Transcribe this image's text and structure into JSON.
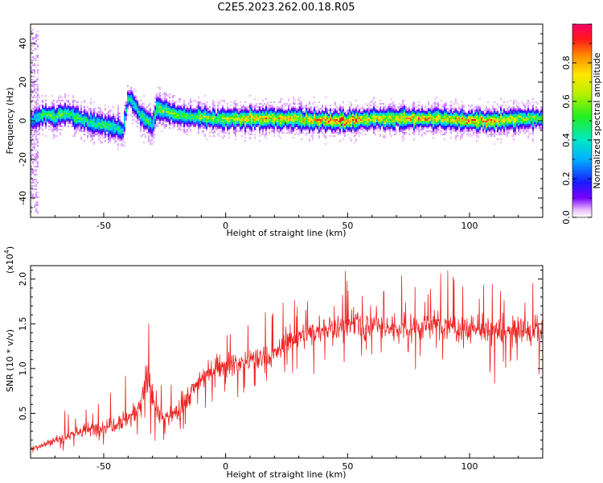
{
  "title": "C2E5.2023.262.00.18.R05",
  "colors": {
    "snr_line": "#ee2222",
    "spectrogram_background": "#ffffff",
    "axis": "#000000"
  },
  "chart_data": [
    {
      "type": "heatmap",
      "xlabel": "Height of straight line (km)",
      "ylabel": "Frequency (Hz)",
      "xlim": [
        -80,
        130
      ],
      "ylim": [
        -50,
        50
      ],
      "xticks": [
        "-50",
        "0",
        "50",
        "100"
      ],
      "xtick_values": [
        -50,
        0,
        50,
        100
      ],
      "yticks": [
        "-40",
        "-20",
        "0",
        "20",
        "40"
      ],
      "ytick_values": [
        -40,
        -20,
        0,
        20,
        40
      ],
      "colormap": "rainbow",
      "colorbar": {
        "label": "Normalized spectral amplitude",
        "range": [
          0,
          1
        ],
        "ticks": [
          "0.0",
          "0.2",
          "0.4",
          "0.6",
          "0.8"
        ],
        "tick_values": [
          0.0,
          0.2,
          0.4,
          0.6,
          0.8
        ]
      },
      "ridge": {
        "x": [
          -80,
          -75,
          -70,
          -65,
          -60,
          -55,
          -50,
          -45,
          -42,
          -40,
          -38,
          -35,
          -32,
          -30,
          -28,
          -25,
          -20,
          -15,
          -10,
          -5,
          0,
          10,
          20,
          30,
          40,
          50,
          60,
          70,
          80,
          90,
          100,
          110,
          120,
          130
        ],
        "frequency": [
          0,
          3,
          2,
          4,
          1,
          -1,
          -2,
          -4,
          -5,
          12,
          10,
          3,
          0,
          -2,
          7,
          5,
          3,
          2,
          2,
          1,
          1,
          1,
          1,
          1,
          0,
          0,
          1,
          1,
          1,
          1,
          0,
          0,
          1,
          1
        ],
        "amplitude": [
          0.3,
          0.5,
          0.55,
          0.5,
          0.5,
          0.45,
          0.5,
          0.45,
          0.4,
          0.45,
          0.4,
          0.45,
          0.5,
          0.4,
          0.6,
          0.55,
          0.55,
          0.5,
          0.6,
          0.6,
          0.65,
          0.8,
          0.75,
          0.7,
          0.85,
          0.9,
          0.7,
          0.75,
          0.8,
          0.7,
          0.85,
          0.8,
          0.65,
          0.55
        ],
        "width_hz": 3
      }
    },
    {
      "type": "line",
      "xlabel": "Height of straight line (km)",
      "ylabel": "SNR (10 * v/v)",
      "y_multiplier_label": "(x10",
      "y_multiplier_exponent": "4",
      "y_multiplier_close": ")",
      "xlim": [
        -80,
        130
      ],
      "ylim": [
        0,
        21500
      ],
      "xticks": [
        "-50",
        "0",
        "50",
        "100"
      ],
      "xtick_values": [
        -50,
        0,
        50,
        100
      ],
      "yticks": [
        "0.5",
        "1.0",
        "1.5",
        "2.0"
      ],
      "ytick_values": [
        5000,
        10000,
        15000,
        20000
      ],
      "series": [
        {
          "x": [
            -80,
            -75,
            -70,
            -65,
            -60,
            -55,
            -50,
            -45,
            -40,
            -35,
            -33,
            -32,
            -30,
            -28,
            -25,
            -20,
            -15,
            -10,
            -5,
            0,
            5,
            10,
            15,
            20,
            25,
            30,
            35,
            40,
            45,
            50,
            55,
            60,
            65,
            70,
            75,
            80,
            85,
            90,
            95,
            100,
            105,
            110,
            115,
            120,
            125,
            130
          ],
          "y": [
            1000,
            1500,
            2000,
            2500,
            3000,
            3200,
            3500,
            4000,
            4500,
            6000,
            8000,
            9000,
            7000,
            5000,
            4500,
            5000,
            7000,
            9000,
            10000,
            10500,
            10500,
            11000,
            11000,
            11500,
            13000,
            13500,
            14000,
            14500,
            14500,
            15000,
            15000,
            15000,
            14500,
            14500,
            14800,
            14500,
            15000,
            14800,
            14500,
            14500,
            14500,
            14000,
            14000,
            14200,
            14000,
            14500
          ],
          "noise_amplitude": [
            600,
            700,
            900,
            1100,
            1300,
            1500,
            1800,
            2000,
            2200,
            2500,
            3500,
            4000,
            3500,
            2500,
            2000,
            2000,
            2200,
            2300,
            2300,
            2300,
            2300,
            2300,
            2300,
            2400,
            2400,
            2400,
            2500,
            2500,
            2800,
            2800,
            2800,
            2800,
            2800,
            2800,
            2800,
            2800,
            2800,
            2800,
            2800,
            2800,
            2800,
            2800,
            2800,
            2800,
            2800,
            2800
          ]
        }
      ]
    }
  ]
}
